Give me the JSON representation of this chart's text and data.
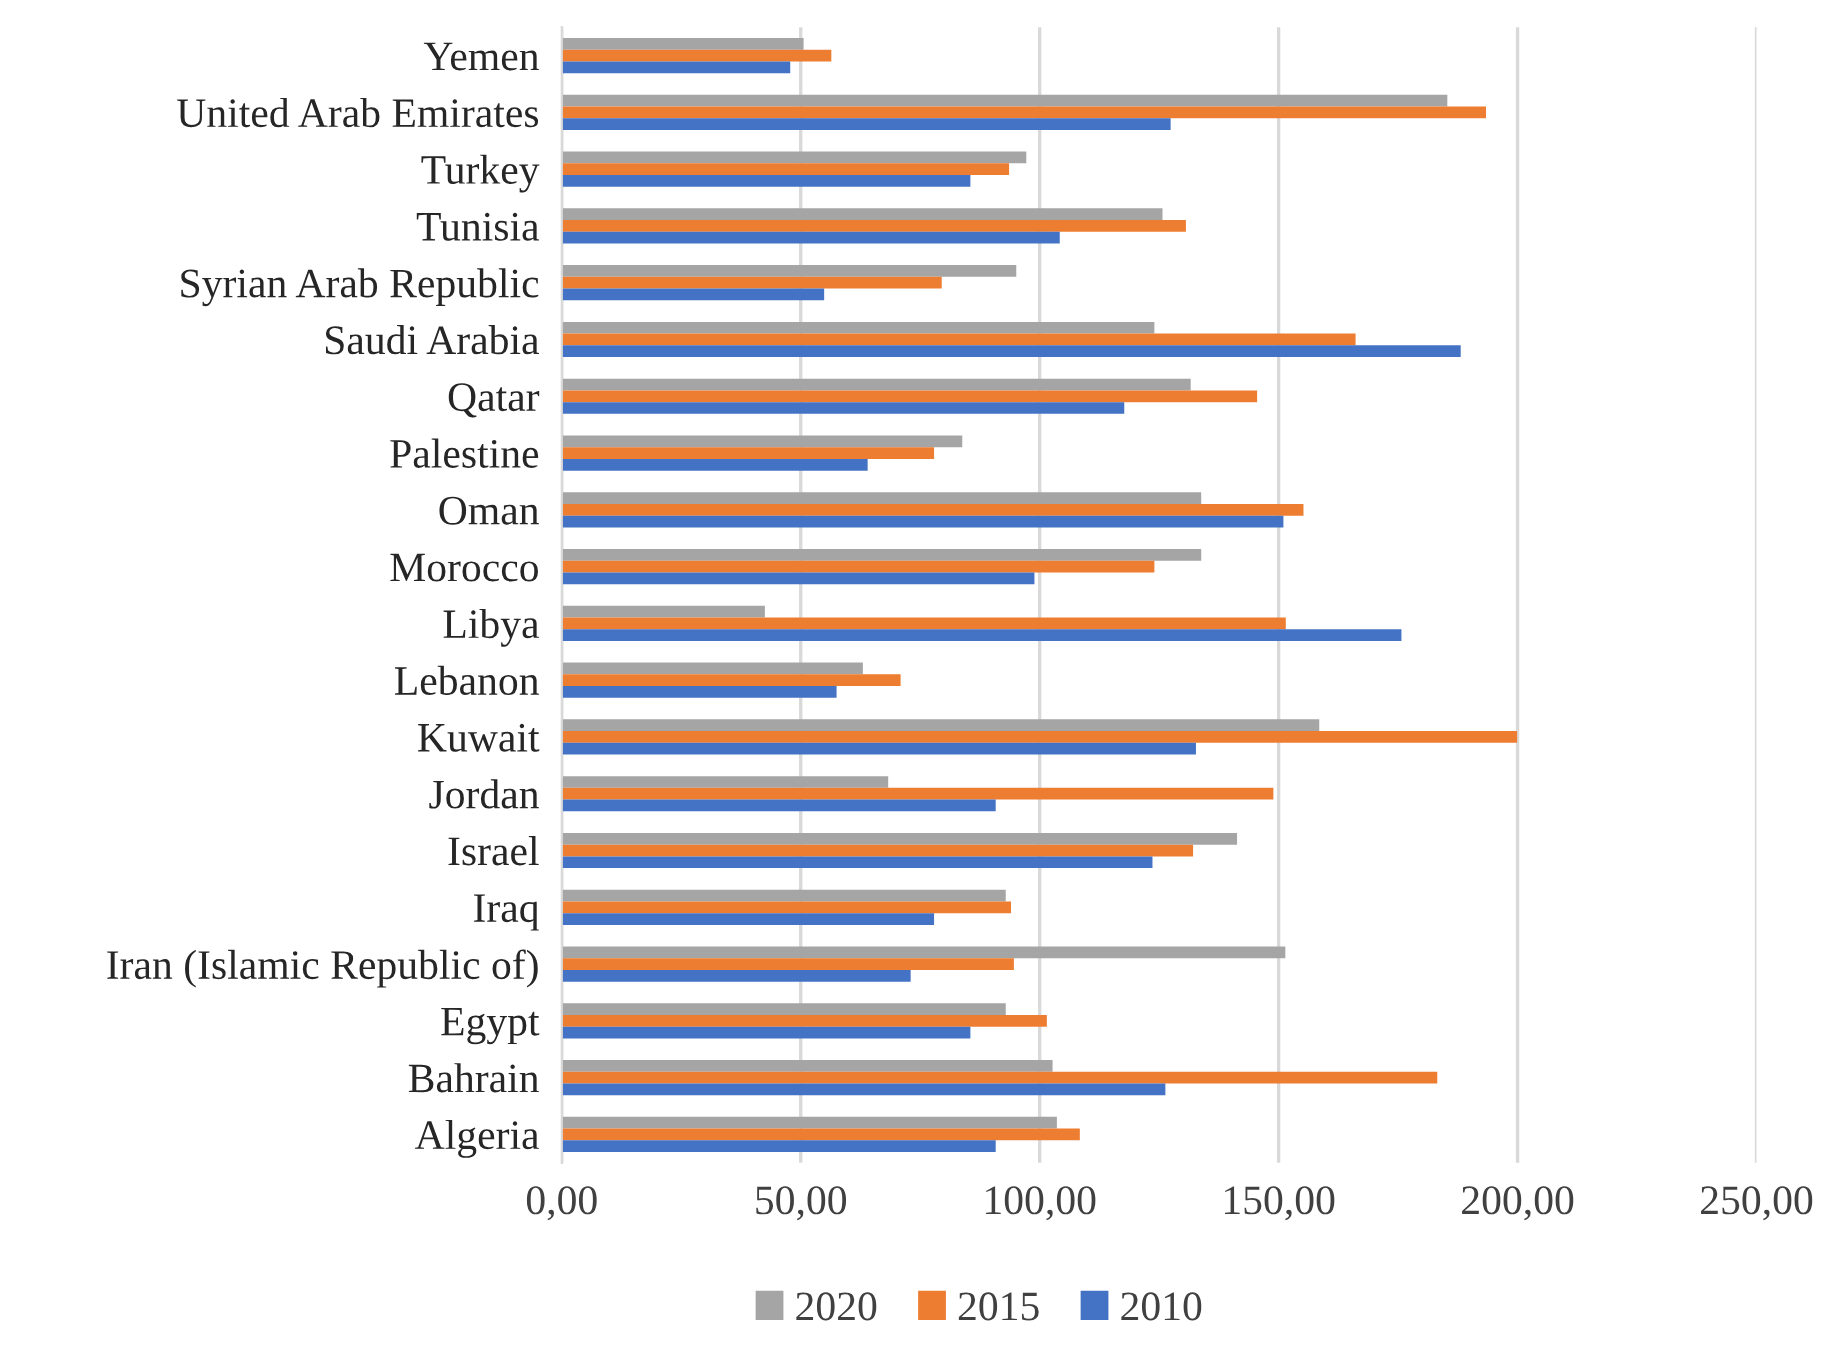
{
  "chart_data": {
    "type": "bar",
    "orientation": "horizontal",
    "categories": [
      "Yemen",
      "United Arab Emirates",
      "Turkey",
      "Tunisia",
      "Syrian Arab Republic",
      "Saudi Arabia",
      "Qatar",
      "Palestine",
      "Oman",
      "Morocco",
      "Libya",
      "Lebanon",
      "Kuwait",
      "Jordan",
      "Israel",
      "Iraq",
      "Iran (Islamic Republic of)",
      "Egypt",
      "Bahrain",
      "Algeria"
    ],
    "series": [
      {
        "name": "2020",
        "color": "#a5a5a5",
        "values": [
          50.6,
          185.3,
          97.2,
          125.7,
          95.1,
          124.0,
          131.6,
          83.8,
          133.8,
          133.8,
          42.5,
          63.0,
          158.5,
          68.3,
          141.3,
          92.9,
          151.4,
          92.9,
          102.7,
          103.6
        ]
      },
      {
        "name": "2015",
        "color": "#ed7d31",
        "values": [
          56.4,
          193.4,
          93.6,
          130.6,
          79.5,
          166.1,
          145.5,
          77.9,
          155.2,
          124.0,
          151.5,
          70.9,
          199.9,
          148.9,
          132.1,
          94.0,
          94.6,
          101.5,
          183.2,
          108.4
        ]
      },
      {
        "name": "2010",
        "color": "#4472c4",
        "values": [
          47.8,
          127.4,
          85.5,
          104.2,
          54.9,
          188.1,
          117.7,
          64.0,
          151.0,
          98.9,
          175.7,
          57.5,
          132.7,
          90.8,
          123.6,
          77.9,
          73.0,
          85.5,
          126.3,
          90.8
        ]
      }
    ],
    "xlim": [
      0,
      250
    ],
    "xticks": [
      {
        "value": 0,
        "label": "0,00"
      },
      {
        "value": 50,
        "label": "50,00"
      },
      {
        "value": 100,
        "label": "100,00"
      },
      {
        "value": 150,
        "label": "150,00"
      },
      {
        "value": 200,
        "label": "200,00"
      },
      {
        "value": 250,
        "label": "250,00"
      }
    ],
    "grid": "x",
    "legend": "bottom"
  }
}
